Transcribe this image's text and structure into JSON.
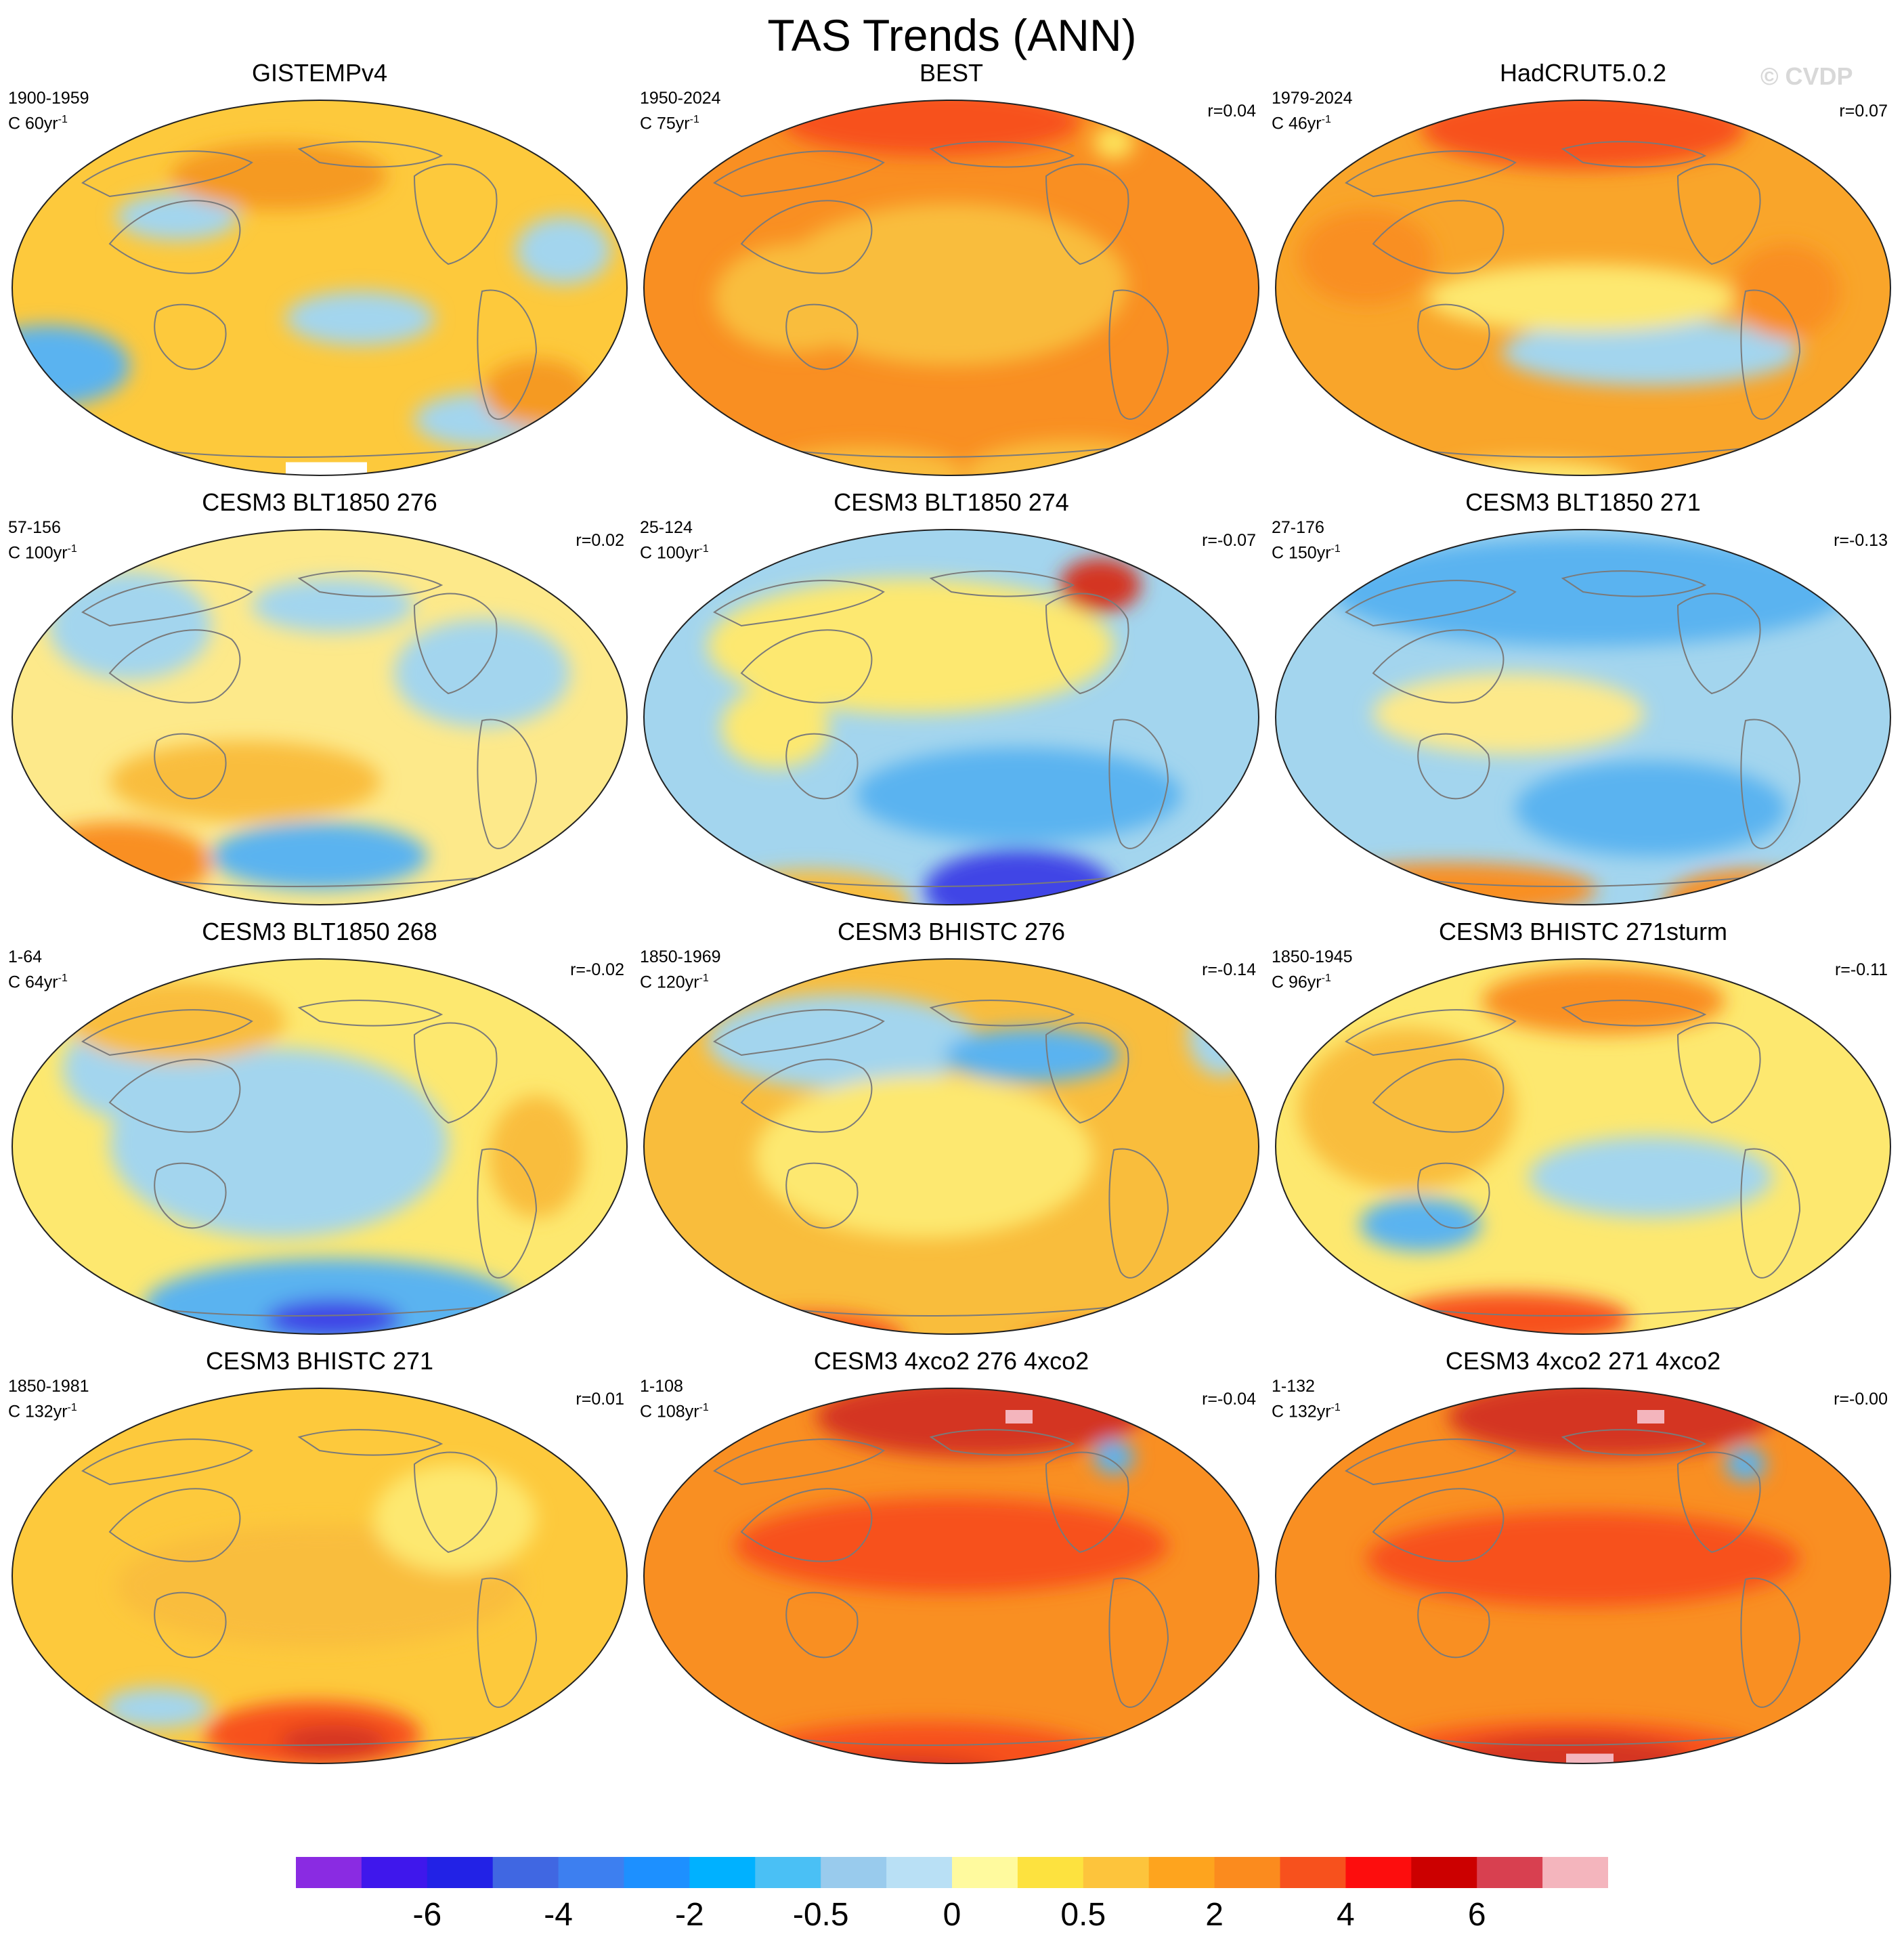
{
  "figure": {
    "title": "TAS Trends (ANN)",
    "credit": "© CVDP"
  },
  "chart_data": {
    "type": "heatmap",
    "title": "TAS Trends (ANN)",
    "variable": "TAS",
    "season": "ANN",
    "map_projection": "Robinson (Pacific-centered)",
    "panels": [
      {
        "name": "GISTEMPv4",
        "period": "1900-1959",
        "trend_length": "C 60yr",
        "r": "",
        "base": "#fdc93c",
        "features": [
          [
            "#a3d5ee",
            250,
            180,
            90,
            35
          ],
          [
            "#a3d5ee",
            520,
            330,
            110,
            40
          ],
          [
            "#5ab3f0",
            60,
            400,
            120,
            60
          ],
          [
            "#a3d5ee",
            700,
            480,
            100,
            40
          ],
          [
            "#a3d5ee",
            820,
            230,
            70,
            50
          ],
          [
            "#f59a22",
            400,
            120,
            160,
            50
          ],
          [
            "#f59a22",
            780,
            440,
            80,
            50
          ]
        ],
        "hatches": [
          [
            "#8a2be2",
            250,
            600,
            250,
            60
          ],
          [
            "#3f44e6",
            600,
            620,
            150,
            30
          ],
          [
            "#ffffff",
            470,
            560,
            120,
            35
          ],
          [
            "#f4b5bd",
            510,
            620,
            60,
            25
          ],
          [
            "#d84050",
            380,
            580,
            40,
            30
          ]
        ]
      },
      {
        "name": "BEST",
        "period": "1950-2024",
        "trend_length": "C 75yr",
        "r": "r=0.04",
        "base": "#f98f22",
        "features": [
          [
            "#f9bd3c",
            460,
            280,
            260,
            120
          ],
          [
            "#f9bd3c",
            230,
            300,
            120,
            80
          ],
          [
            "#f7511d",
            430,
            40,
            220,
            50
          ],
          [
            "#f9bd3c",
            640,
            560,
            160,
            50
          ],
          [
            "#f9bd3c",
            330,
            560,
            150,
            40
          ],
          [
            "#fde45b",
            700,
            70,
            30,
            25
          ]
        ],
        "hatches": []
      },
      {
        "name": "HadCRUT5.0.2",
        "period": "1979-2024",
        "trend_length": "C 46yr",
        "r": "r=0.07",
        "base": "#f9a52a",
        "features": [
          [
            "#a3d5ee",
            560,
            380,
            220,
            50
          ],
          [
            "#fde86f",
            460,
            300,
            230,
            50
          ],
          [
            "#f7511d",
            460,
            50,
            240,
            60
          ],
          [
            "#fde86f",
            380,
            580,
            160,
            40
          ],
          [
            "#f98f22",
            760,
            290,
            80,
            70
          ],
          [
            "#f98f22",
            140,
            240,
            100,
            70
          ]
        ],
        "hatches": [
          [
            "#ffffff",
            480,
            605,
            90,
            25
          ],
          [
            "#ffffff",
            740,
            600,
            40,
            20
          ]
        ]
      },
      {
        "name": "CESM3 BLT1850 276",
        "period": "57-156",
        "trend_length": "C 100yr",
        "r": "r=0.02",
        "base": "#fde98a",
        "features": [
          [
            "#a3d5ee",
            180,
            150,
            120,
            80
          ],
          [
            "#5ab3f0",
            460,
            490,
            160,
            50
          ],
          [
            "#a3d5ee",
            700,
            220,
            130,
            80
          ],
          [
            "#f98f22",
            160,
            500,
            140,
            60
          ],
          [
            "#f9bd3c",
            350,
            380,
            200,
            60
          ],
          [
            "#a3d5ee",
            480,
            120,
            120,
            40
          ]
        ],
        "hatches": []
      },
      {
        "name": "CESM3 BLT1850 274",
        "period": "25-124",
        "trend_length": "C 100yr",
        "r": "r=-0.07",
        "base": "#a3d5ee",
        "features": [
          [
            "#fde86f",
            400,
            180,
            300,
            100
          ],
          [
            "#5ab3f0",
            560,
            400,
            240,
            70
          ],
          [
            "#3f44e6",
            560,
            540,
            140,
            60
          ],
          [
            "#f9bd3c",
            250,
            560,
            150,
            50
          ],
          [
            "#d43522",
            680,
            90,
            60,
            40
          ],
          [
            "#fde86f",
            200,
            300,
            80,
            60
          ]
        ],
        "hatches": []
      },
      {
        "name": "CESM3 BLT1850 271",
        "period": "27-176",
        "trend_length": "C 150yr",
        "r": "r=-0.13",
        "base": "#a3d5ee",
        "features": [
          [
            "#5ab3f0",
            470,
            100,
            380,
            80
          ],
          [
            "#5ab3f0",
            560,
            420,
            200,
            70
          ],
          [
            "#f98f22",
            260,
            540,
            220,
            40
          ],
          [
            "#f98f22",
            700,
            560,
            120,
            50
          ],
          [
            "#fde98a",
            350,
            280,
            200,
            60
          ]
        ],
        "hatches": []
      },
      {
        "name": "CESM3 BLT1850 268",
        "period": "1-64",
        "trend_length": "C 64yr",
        "r": "r=-0.02",
        "base": "#fde86f",
        "features": [
          [
            "#a3d5ee",
            400,
            280,
            250,
            140
          ],
          [
            "#5ab3f0",
            480,
            520,
            280,
            70
          ],
          [
            "#a3d5ee",
            200,
            170,
            120,
            80
          ],
          [
            "#f9bd3c",
            250,
            100,
            160,
            60
          ],
          [
            "#f9bd3c",
            780,
            300,
            70,
            90
          ],
          [
            "#3f44e6",
            480,
            540,
            100,
            30
          ]
        ],
        "hatches": []
      },
      {
        "name": "CESM3 BHISTC 276",
        "period": "1850-1969",
        "trend_length": "C 120yr",
        "r": "r=-0.14",
        "base": "#f9bd3c",
        "features": [
          [
            "#a3d5ee",
            300,
            130,
            200,
            70
          ],
          [
            "#5ab3f0",
            580,
            150,
            130,
            40
          ],
          [
            "#fde86f",
            420,
            300,
            250,
            120
          ],
          [
            "#f7511d",
            250,
            570,
            140,
            40
          ],
          [
            "#f7511d",
            690,
            580,
            130,
            30
          ],
          [
            "#a3d5ee",
            860,
            120,
            50,
            60
          ]
        ],
        "hatches": []
      },
      {
        "name": "CESM3 BHISTC 271sturm",
        "period": "1850-1945",
        "trend_length": "C 96yr",
        "r": "r=-0.11",
        "base": "#fde86f",
        "features": [
          [
            "#f9bd3c",
            200,
            230,
            160,
            120
          ],
          [
            "#a3d5ee",
            560,
            330,
            180,
            60
          ],
          [
            "#f7511d",
            350,
            540,
            180,
            40
          ],
          [
            "#f98f22",
            490,
            70,
            180,
            50
          ],
          [
            "#5ab3f0",
            220,
            400,
            90,
            40
          ]
        ],
        "hatches": []
      },
      {
        "name": "CESM3 BHISTC 271",
        "period": "1850-1981",
        "trend_length": "C 132yr",
        "r": "r=0.01",
        "base": "#fdc93c",
        "features": [
          [
            "#f9bd3c",
            460,
            300,
            300,
            90
          ],
          [
            "#f7511d",
            450,
            520,
            160,
            50
          ],
          [
            "#d43522",
            480,
            530,
            80,
            25
          ],
          [
            "#a3d5ee",
            220,
            480,
            80,
            30
          ],
          [
            "#fde86f",
            660,
            200,
            120,
            80
          ]
        ],
        "hatches": []
      },
      {
        "name": "CESM3 4xco2 276 4xco2",
        "period": "1-108",
        "trend_length": "C 108yr",
        "r": "r=-0.04",
        "base": "#f98f22",
        "features": [
          [
            "#f7511d",
            460,
            240,
            320,
            70
          ],
          [
            "#d43522",
            500,
            50,
            240,
            60
          ],
          [
            "#f7511d",
            420,
            560,
            280,
            60
          ],
          [
            "#d43522",
            380,
            580,
            160,
            30
          ],
          [
            "#5ab3f0",
            700,
            110,
            30,
            25
          ]
        ],
        "hatches": [
          [
            "#f4b5bd",
            560,
            50,
            40,
            20
          ]
        ]
      },
      {
        "name": "CESM3 4xco2 271 4xco2",
        "period": "1-132",
        "trend_length": "C 132yr",
        "r": "r=-0.00",
        "base": "#f98f22",
        "features": [
          [
            "#f7511d",
            460,
            260,
            320,
            70
          ],
          [
            "#d43522",
            500,
            50,
            240,
            60
          ],
          [
            "#f7511d",
            440,
            560,
            300,
            60
          ],
          [
            "#d43522",
            440,
            560,
            180,
            40
          ],
          [
            "#5ab3f0",
            700,
            120,
            30,
            25
          ]
        ],
        "hatches": [
          [
            "#f4b5bd",
            470,
            560,
            70,
            25
          ],
          [
            "#f4b5bd",
            560,
            50,
            40,
            20
          ]
        ]
      }
    ],
    "colorbar": {
      "colors": [
        "#8a2be2",
        "#3f17ec",
        "#2222e6",
        "#4067e2",
        "#3d7ff0",
        "#1d90ff",
        "#00b1ff",
        "#4ac0f5",
        "#99cbed",
        "#b9e0f5",
        "#fffa9e",
        "#fde23f",
        "#fdc43c",
        "#fea41e",
        "#fb8b1e",
        "#f7511d",
        "#fd0d0d",
        "#cc0000",
        "#d84050",
        "#f4b5bd"
      ],
      "tick_labels": [
        "-6",
        "-4",
        "-2",
        "-0.5",
        "0",
        "0.5",
        "2",
        "4",
        "6"
      ],
      "tick_boundary_index": [
        2,
        4,
        6,
        8,
        10,
        12,
        14,
        16,
        18
      ]
    }
  }
}
